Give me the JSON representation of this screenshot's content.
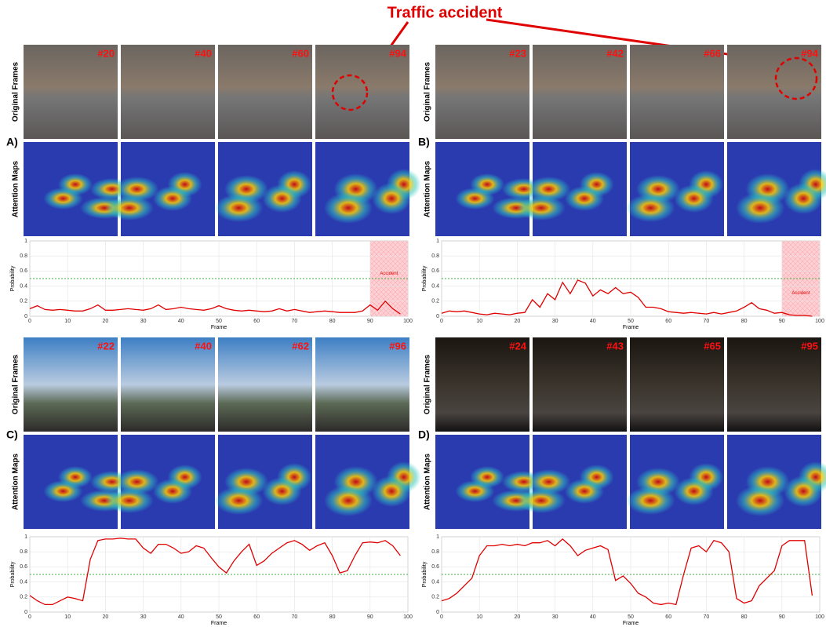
{
  "annotation": "Traffic accident",
  "panels": [
    {
      "label": "A)",
      "frame_labels": [
        "#20",
        "#40",
        "#60",
        "#94"
      ],
      "row_labels": [
        "Original Frames",
        "Attention Maps"
      ]
    },
    {
      "label": "B)",
      "frame_labels": [
        "#23",
        "#42",
        "#66",
        "#94"
      ],
      "row_labels": [
        "Original Frames",
        "Attention Maps"
      ]
    },
    {
      "label": "C)",
      "frame_labels": [
        "#22",
        "#40",
        "#62",
        "#96"
      ],
      "row_labels": [
        "Original Frames",
        "Attention Maps"
      ]
    },
    {
      "label": "D)",
      "frame_labels": [
        "#24",
        "#43",
        "#65",
        "#95"
      ],
      "row_labels": [
        "Original Frames",
        "Attention Maps"
      ]
    }
  ],
  "chart_data": [
    {
      "type": "line",
      "xlabel": "Frame",
      "ylabel": "Probability",
      "xlim": [
        0,
        100
      ],
      "ylim": [
        0,
        1
      ],
      "xticks": [
        0,
        10,
        20,
        30,
        40,
        50,
        60,
        70,
        80,
        90,
        100
      ],
      "yticks": [
        0.0,
        0.2,
        0.4,
        0.6,
        0.8,
        1.0
      ],
      "threshold": 0.5,
      "span": [
        90,
        100
      ],
      "span_label": "Accident",
      "color": "#e00000",
      "grid": true,
      "x": [
        0,
        2,
        4,
        6,
        8,
        10,
        12,
        14,
        16,
        18,
        20,
        22,
        24,
        26,
        28,
        30,
        32,
        34,
        36,
        38,
        40,
        42,
        44,
        46,
        48,
        50,
        52,
        54,
        56,
        58,
        60,
        62,
        64,
        66,
        68,
        70,
        72,
        74,
        76,
        78,
        80,
        82,
        84,
        86,
        88,
        90,
        92,
        94,
        96,
        98
      ],
      "values": [
        0.1,
        0.14,
        0.09,
        0.08,
        0.09,
        0.08,
        0.07,
        0.07,
        0.1,
        0.15,
        0.08,
        0.08,
        0.09,
        0.1,
        0.09,
        0.08,
        0.1,
        0.15,
        0.09,
        0.1,
        0.12,
        0.1,
        0.09,
        0.08,
        0.1,
        0.14,
        0.1,
        0.08,
        0.07,
        0.08,
        0.07,
        0.06,
        0.07,
        0.1,
        0.07,
        0.09,
        0.07,
        0.05,
        0.06,
        0.07,
        0.06,
        0.05,
        0.05,
        0.05,
        0.07,
        0.15,
        0.08,
        0.2,
        0.1,
        0.03
      ]
    },
    {
      "type": "line",
      "xlabel": "Frame",
      "ylabel": "Probability",
      "xlim": [
        0,
        100
      ],
      "ylim": [
        0,
        1
      ],
      "xticks": [
        0,
        10,
        20,
        30,
        40,
        50,
        60,
        70,
        80,
        90,
        100
      ],
      "yticks": [
        0.0,
        0.2,
        0.4,
        0.6,
        0.8,
        1.0
      ],
      "threshold": 0.5,
      "span": [
        90,
        100
      ],
      "span_label": "Accident",
      "color": "#e00000",
      "grid": true,
      "x": [
        0,
        2,
        4,
        6,
        8,
        10,
        12,
        14,
        16,
        18,
        20,
        22,
        24,
        26,
        28,
        30,
        32,
        34,
        36,
        38,
        40,
        42,
        44,
        46,
        48,
        50,
        52,
        54,
        56,
        58,
        60,
        62,
        64,
        66,
        68,
        70,
        72,
        74,
        76,
        78,
        80,
        82,
        84,
        86,
        88,
        90,
        92,
        94,
        96,
        98
      ],
      "values": [
        0.04,
        0.07,
        0.06,
        0.07,
        0.05,
        0.03,
        0.02,
        0.04,
        0.03,
        0.02,
        0.04,
        0.05,
        0.22,
        0.12,
        0.3,
        0.22,
        0.45,
        0.3,
        0.48,
        0.44,
        0.27,
        0.35,
        0.3,
        0.38,
        0.3,
        0.32,
        0.25,
        0.12,
        0.12,
        0.1,
        0.06,
        0.05,
        0.04,
        0.05,
        0.04,
        0.03,
        0.05,
        0.03,
        0.05,
        0.07,
        0.12,
        0.18,
        0.1,
        0.08,
        0.04,
        0.05,
        0.02,
        0.01,
        0.01,
        0.0
      ]
    },
    {
      "type": "line",
      "xlabel": "Frame",
      "ylabel": "Probability",
      "xlim": [
        0,
        100
      ],
      "ylim": [
        0,
        1
      ],
      "xticks": [
        0,
        10,
        20,
        30,
        40,
        50,
        60,
        70,
        80,
        90,
        100
      ],
      "yticks": [
        0.0,
        0.2,
        0.4,
        0.6,
        0.8,
        1.0
      ],
      "threshold": 0.5,
      "color": "#e00000",
      "grid": true,
      "x": [
        0,
        2,
        4,
        6,
        8,
        10,
        12,
        14,
        16,
        18,
        20,
        22,
        24,
        26,
        28,
        30,
        32,
        34,
        36,
        38,
        40,
        42,
        44,
        46,
        48,
        50,
        52,
        54,
        56,
        58,
        60,
        62,
        64,
        66,
        68,
        70,
        72,
        74,
        76,
        78,
        80,
        82,
        84,
        86,
        88,
        90,
        92,
        94,
        96,
        98
      ],
      "values": [
        0.22,
        0.15,
        0.1,
        0.1,
        0.15,
        0.2,
        0.18,
        0.15,
        0.7,
        0.95,
        0.97,
        0.97,
        0.98,
        0.97,
        0.97,
        0.85,
        0.78,
        0.9,
        0.9,
        0.85,
        0.78,
        0.8,
        0.88,
        0.85,
        0.72,
        0.6,
        0.52,
        0.68,
        0.8,
        0.9,
        0.62,
        0.68,
        0.78,
        0.85,
        0.92,
        0.95,
        0.9,
        0.82,
        0.88,
        0.92,
        0.75,
        0.52,
        0.55,
        0.75,
        0.92,
        0.93,
        0.92,
        0.95,
        0.88,
        0.75
      ]
    },
    {
      "type": "line",
      "xlabel": "Frame",
      "ylabel": "Probability",
      "xlim": [
        0,
        100
      ],
      "ylim": [
        0,
        1
      ],
      "xticks": [
        0,
        10,
        20,
        30,
        40,
        50,
        60,
        70,
        80,
        90,
        100
      ],
      "yticks": [
        0.0,
        0.2,
        0.4,
        0.6,
        0.8,
        1.0
      ],
      "threshold": 0.5,
      "color": "#e00000",
      "grid": true,
      "x": [
        0,
        2,
        4,
        6,
        8,
        10,
        12,
        14,
        16,
        18,
        20,
        22,
        24,
        26,
        28,
        30,
        32,
        34,
        36,
        38,
        40,
        42,
        44,
        46,
        48,
        50,
        52,
        54,
        56,
        58,
        60,
        62,
        64,
        66,
        68,
        70,
        72,
        74,
        76,
        78,
        80,
        82,
        84,
        86,
        88,
        90,
        92,
        94,
        96,
        98
      ],
      "values": [
        0.15,
        0.18,
        0.25,
        0.35,
        0.45,
        0.75,
        0.88,
        0.88,
        0.9,
        0.88,
        0.9,
        0.88,
        0.92,
        0.92,
        0.95,
        0.88,
        0.97,
        0.88,
        0.75,
        0.82,
        0.85,
        0.88,
        0.83,
        0.42,
        0.48,
        0.38,
        0.25,
        0.2,
        0.12,
        0.1,
        0.12,
        0.1,
        0.5,
        0.85,
        0.88,
        0.8,
        0.95,
        0.92,
        0.8,
        0.18,
        0.12,
        0.15,
        0.35,
        0.45,
        0.55,
        0.88,
        0.95,
        0.95,
        0.95,
        0.22
      ]
    }
  ]
}
